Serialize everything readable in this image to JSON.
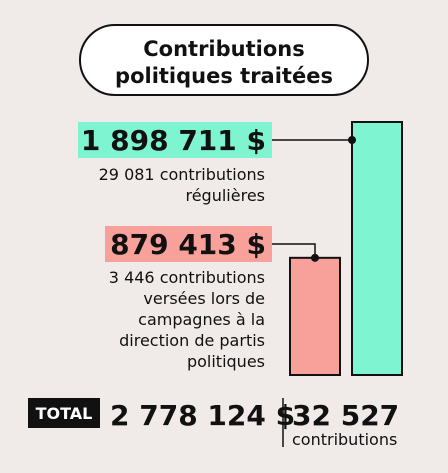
{
  "chart_data": {
    "type": "bar",
    "title": "Contributions\npolitiques traitées",
    "categories": [
      "29 081 contributions\nrégulières",
      "3 446 contributions\nversées lors de\ncampagnes à la\ndirection de partis\npolitiques"
    ],
    "values": [
      1898711,
      879413
    ],
    "value_labels": [
      "1 898 711 $",
      "879 413 $"
    ],
    "colors": [
      "#7ef5d0",
      "#f8a19a"
    ],
    "total": {
      "label": "TOTAL",
      "amount": "2 778 124 $",
      "count": "32 527",
      "unit": "contributions"
    }
  }
}
